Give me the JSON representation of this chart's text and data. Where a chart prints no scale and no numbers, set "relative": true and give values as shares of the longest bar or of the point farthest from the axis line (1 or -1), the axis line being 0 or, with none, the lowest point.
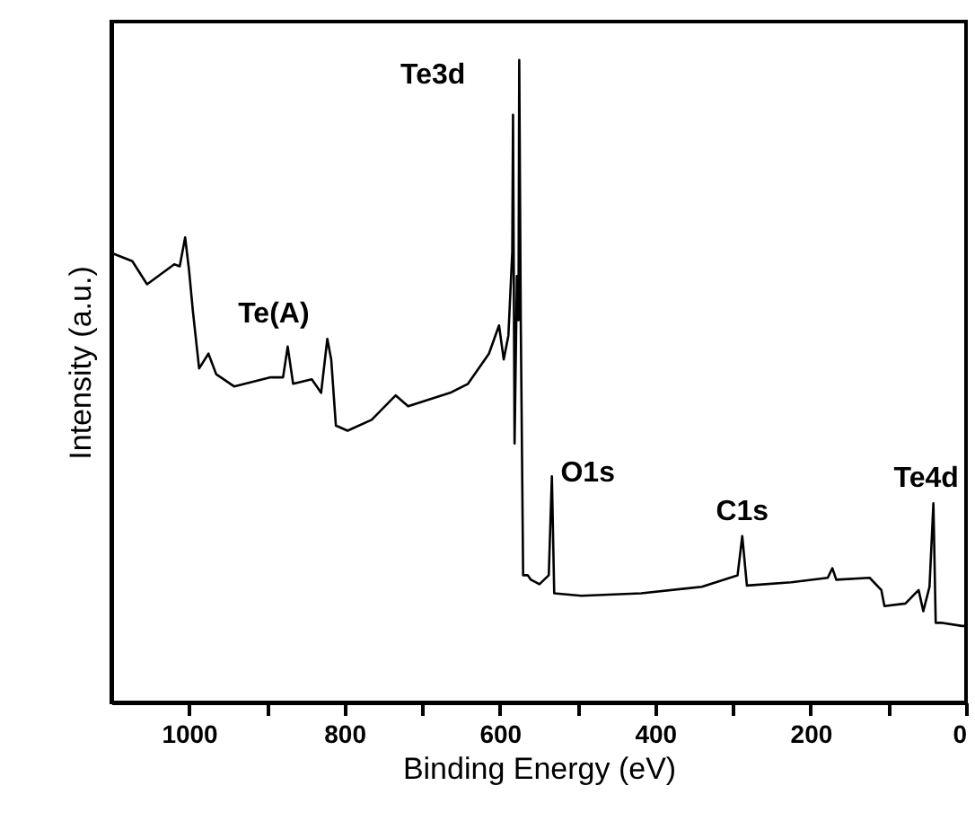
{
  "chart_data": {
    "type": "line",
    "relative": true,
    "xlabel": "Binding Energy (eV)",
    "ylabel": "Intensity (a.u.)",
    "xlim": [
      1100,
      0
    ],
    "xticks": [
      1000,
      {
        "value": 900,
        "label": null
      },
      800,
      {
        "value": 700,
        "label": null
      },
      600,
      {
        "value": 500,
        "label": null
      },
      400,
      {
        "value": 300,
        "label": null
      },
      200,
      {
        "value": 100,
        "label": null
      },
      0
    ],
    "x": [
      1100,
      1073,
      1054,
      1019,
      1012,
      1005,
      1000,
      995,
      987,
      975,
      965,
      942,
      896,
      879,
      873,
      866,
      842,
      830,
      822,
      817,
      811,
      796,
      765,
      734,
      718,
      664,
      641,
      614,
      601,
      595,
      589,
      584,
      583,
      581,
      578,
      576,
      575,
      573,
      570,
      564,
      560,
      549,
      537,
      533,
      530,
      495,
      418,
      340,
      294,
      288,
      282,
      225,
      178,
      172,
      167,
      124,
      109,
      105,
      78,
      61,
      55,
      47,
      42,
      39,
      32,
      5,
      0
    ],
    "series": [
      {
        "color": "#000000",
        "values": [
          0.7,
          0.687,
          0.651,
          0.682,
          0.679,
          0.724,
          0.673,
          0.609,
          0.52,
          0.543,
          0.511,
          0.492,
          0.506,
          0.506,
          0.554,
          0.496,
          0.503,
          0.482,
          0.566,
          0.534,
          0.431,
          0.423,
          0.44,
          0.478,
          0.461,
          0.482,
          0.496,
          0.543,
          0.587,
          0.534,
          0.571,
          0.701,
          0.915,
          0.403,
          0.664,
          0.595,
          1.0,
          0.589,
          0.198,
          0.198,
          0.191,
          0.184,
          0.198,
          0.352,
          0.17,
          0.166,
          0.17,
          0.18,
          0.198,
          0.259,
          0.182,
          0.187,
          0.194,
          0.209,
          0.191,
          0.194,
          0.175,
          0.15,
          0.154,
          0.175,
          0.142,
          0.18,
          0.31,
          0.124,
          0.124,
          0.119,
          0.119
        ]
      }
    ],
    "annotations": [
      {
        "text": "Te3d",
        "x": 575,
        "y": 1.0
      },
      {
        "text": "Te(A)",
        "x": 822,
        "y": 0.566
      },
      {
        "text": "O1s",
        "x": 533,
        "y": 0.352
      },
      {
        "text": "C1s",
        "x": 288,
        "y": 0.259
      },
      {
        "text": "Te4d",
        "x": 42,
        "y": 0.31
      }
    ],
    "marker": "none",
    "line_style": "solid"
  }
}
